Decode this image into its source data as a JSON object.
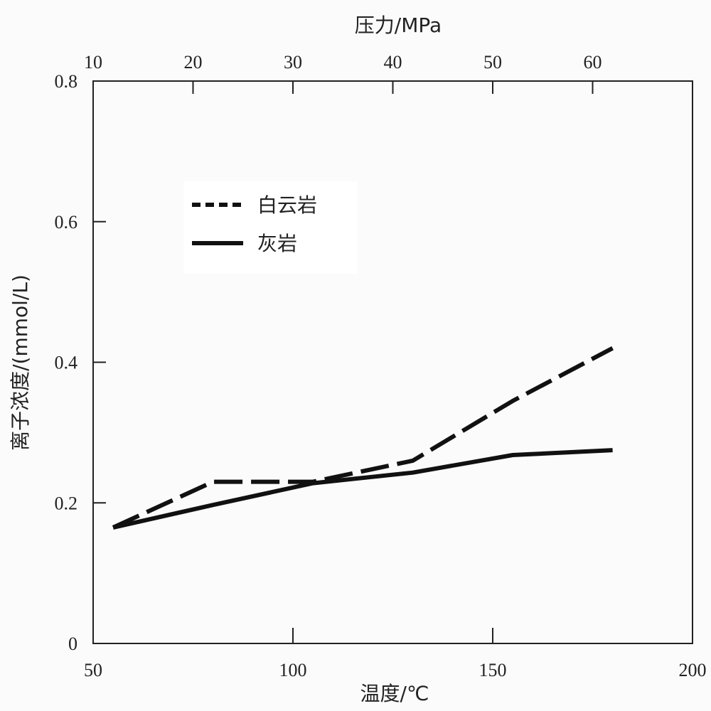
{
  "chart_data": {
    "type": "line",
    "xlabel": "温度/℃",
    "x2label": "压力/MPa",
    "ylabel": "离子浓度/(mmol/L)",
    "xlim": [
      50,
      200
    ],
    "x2lim": [
      10,
      70
    ],
    "ylim": [
      0,
      0.8
    ],
    "x_ticks": [
      50,
      100,
      150,
      200
    ],
    "x_tick_labels": [
      "50",
      "100",
      "150",
      "200"
    ],
    "x2_ticks": [
      10,
      20,
      30,
      40,
      50,
      60
    ],
    "x2_tick_labels": [
      "10",
      "20",
      "30",
      "40",
      "50",
      "60"
    ],
    "y_ticks": [
      0,
      0.2,
      0.4,
      0.6,
      0.8
    ],
    "y_tick_labels": [
      "0",
      "0.2",
      "0.4",
      "0.6",
      "0.8"
    ],
    "grid": false,
    "legend_position": "upper-left",
    "series": [
      {
        "name": "白云岩",
        "style": "dashed",
        "color": "#111111",
        "x": [
          55,
          80,
          105,
          130,
          155,
          180
        ],
        "y": [
          0.165,
          0.23,
          0.23,
          0.26,
          0.345,
          0.42
        ]
      },
      {
        "name": "灰岩",
        "style": "solid",
        "color": "#111111",
        "x": [
          55,
          80,
          105,
          130,
          155,
          180
        ],
        "y": [
          0.165,
          0.197,
          0.228,
          0.243,
          0.268,
          0.275
        ]
      }
    ]
  }
}
